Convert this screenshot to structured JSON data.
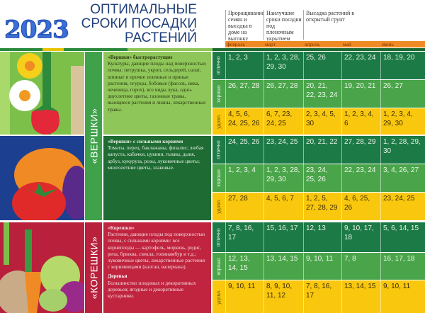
{
  "header": {
    "year": "2023",
    "title_lines": [
      "ОПТИМАЛЬНЫЕ",
      "СРОКИ ПОСАДКИ",
      "РАСТЕНИЙ"
    ],
    "col_groups": [
      "Проращивание семян и высадка в доме на выгонку",
      "Наилучшие сроки посадки под пленочным укрытием",
      "Высадка растений в открытый грунт"
    ],
    "months": [
      "февраль",
      "март",
      "апрель",
      "май",
      "июнь"
    ]
  },
  "colors": {
    "excellent": "#1c7a46",
    "good": "#4aa54a",
    "satisfactory": "#f9c80e",
    "months_bar": "#f08a24",
    "tops": "#3fa24a",
    "roots": "#b8203c"
  },
  "ratings": [
    "отлично",
    "хорошо",
    "удовл."
  ],
  "bands": {
    "tops": "«ВЕРШКИ»",
    "roots": "«КОРЕШКИ»"
  },
  "sections": [
    {
      "heading": "«Вершки» быстрорастущие",
      "text": "Культуры, дающие плоды над поверхностью почвы: петрушка, укроп, сельдерей, салат, шпинат и прочие зеленные и пряные растения, огурцы, бобовые (фасоль, вика, чечевица, горох), все виды лука, одно-двухлетние цветы, газонные травы, вьющиеся растения и лианы, лекарственные травы.",
      "rows": [
        [
          "1, 2, 3",
          "1, 2, 3, 28, 29, 30",
          "25, 26",
          "22, 23, 24",
          "18, 19, 20"
        ],
        [
          "26, 27, 28",
          "26, 27, 28",
          "20, 21, 22, 23, 24",
          "19, 20, 21",
          "26, 27"
        ],
        [
          "4, 5, 6, 24, 25, 26",
          "6, 7, 23, 24, 25",
          "2, 3, 4, 5, 30",
          "1, 2, 3, 4, 6",
          "1, 2, 3, 4, 29, 30"
        ]
      ]
    },
    {
      "heading": "«Вершки» с сильными корнями",
      "text": "Томаты, перец, баклажаны, физалис; любая капуста, кабачки, цукини, тыквы, дыня, арбуз, кукуруза, розы, луковичные цветы; многолетние цветы, злаковые.",
      "rows": [
        [
          "24, 25, 26",
          "23, 24, 25",
          "20, 21, 22",
          "27, 28, 29",
          "1, 2, 28, 29, 30"
        ],
        [
          "1, 2, 3, 4",
          "1, 2, 3, 28, 29, 30",
          "23, 24, 25, 26",
          "22, 23, 24",
          "3, 4, 26, 27"
        ],
        [
          "27, 28",
          "4, 5, 6, 7",
          "1, 2, 5, 27, 28, 29",
          "4, 6, 25, 26",
          "23, 24, 25"
        ]
      ]
    },
    {
      "heading": "«Корешки»",
      "text": "Растения, дающие плоды под поверхностью почвы, с сильными корнями: все корнеплоды — картофель, морковь, редис, репа, брюква, свекла, топинамбур и т.д.; луковичные цветы, лекарственные растения с корневищами (калган, валериана).",
      "heading2": "Деревья",
      "text2": "Большинство плодовых и декоративных деревьев; ягодные и декоративные кустарники.",
      "rows": [
        [
          "7, 8, 16, 17",
          "15, 16, 17",
          "12, 13",
          "9, 10, 17, 18",
          "5, 6, 14, 15"
        ],
        [
          "12, 13, 14, 15",
          "13, 14, 15",
          "9, 10, 11",
          "7, 8",
          "16, 17, 18"
        ],
        [
          "9, 10, 11",
          "8, 9, 10, 11, 12",
          "7, 8, 16, 17",
          "13, 14, 15",
          "9, 10, 11"
        ]
      ]
    }
  ]
}
